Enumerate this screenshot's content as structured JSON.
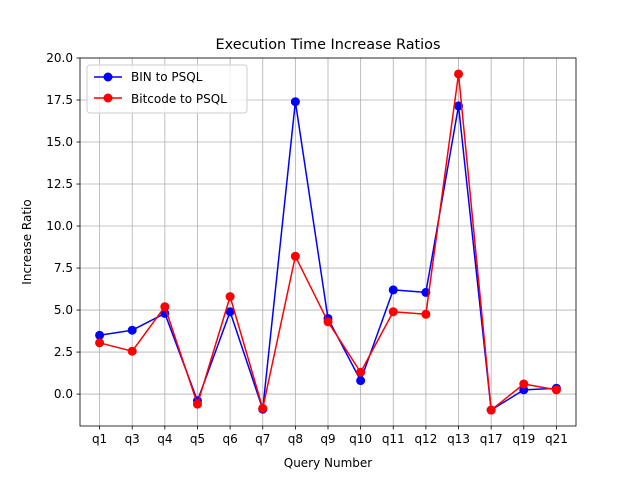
{
  "chart_data": {
    "type": "line",
    "title": "Execution Time Increase Ratios",
    "xlabel": "Query Number",
    "ylabel": "Increase Ratio",
    "categories": [
      "q1",
      "q3",
      "q4",
      "q5",
      "q6",
      "q7",
      "q8",
      "q9",
      "q10",
      "q11",
      "q12",
      "q13",
      "q17",
      "q19",
      "q21"
    ],
    "ylim": [
      -1.9,
      20.0
    ],
    "yticks": [
      0.0,
      2.5,
      5.0,
      7.5,
      10.0,
      12.5,
      15.0,
      17.5,
      20.0
    ],
    "ytick_labels": [
      "0.0",
      "2.5",
      "5.0",
      "7.5",
      "10.0",
      "12.5",
      "15.0",
      "17.5",
      "20.0"
    ],
    "grid": true,
    "legend_position": "top-left",
    "series": [
      {
        "name": "BIN to PSQL",
        "color": "#0000ff",
        "marker": "circle",
        "values": [
          3.5,
          3.8,
          4.8,
          -0.4,
          4.9,
          -0.9,
          17.4,
          4.5,
          0.8,
          6.2,
          6.05,
          17.15,
          -0.95,
          0.25,
          0.35
        ]
      },
      {
        "name": "Bitcode to PSQL",
        "color": "#ff0000",
        "marker": "circle",
        "values": [
          3.05,
          2.55,
          5.2,
          -0.6,
          5.8,
          -0.85,
          8.2,
          4.3,
          1.3,
          4.9,
          4.75,
          19.05,
          -0.95,
          0.6,
          0.25
        ]
      }
    ]
  }
}
